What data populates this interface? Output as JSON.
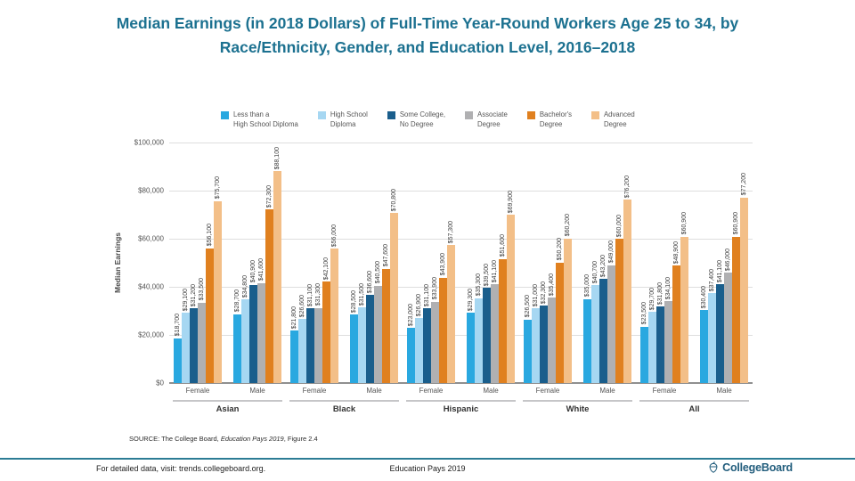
{
  "title": "Median Earnings (in 2018 Dollars) of Full-Time Year-Round Workers Age 25 to 34, by Race/Ethnicity, Gender, and Education Level, 2016–2018",
  "chart_data": {
    "type": "bar",
    "title": "Median Earnings (in 2018 Dollars) of Full-Time Year-Round Workers Age 25 to 34, by Race/Ethnicity, Gender, and Education Level, 2016–2018",
    "ylabel": "Median Earnings",
    "xlabel": "",
    "ylim": [
      0,
      100000
    ],
    "ytick_step": 20000,
    "yticks": [
      "$0",
      "$20,000",
      "$40,000",
      "$60,000",
      "$80,000",
      "$100,000"
    ],
    "grid": true,
    "legend_position": "top",
    "genders": [
      "Female",
      "Male"
    ],
    "series": [
      {
        "name": "Less than a High School Diploma",
        "legend_label": "Less than a\nHigh School Diploma",
        "color": "#29a8e0"
      },
      {
        "name": "High School Diploma",
        "legend_label": "High School\nDiploma",
        "color": "#a6d7f2"
      },
      {
        "name": "Some College, No Degree",
        "legend_label": "Some College,\nNo Degree",
        "color": "#1a5e8c"
      },
      {
        "name": "Associate Degree",
        "legend_label": "Associate\nDegree",
        "color": "#b0b0b2"
      },
      {
        "name": "Bachelor's Degree",
        "legend_label": "Bachelor's\nDegree",
        "color": "#e0801f"
      },
      {
        "name": "Advanced Degree",
        "legend_label": "Advanced\nDegree",
        "color": "#f3bf88"
      }
    ],
    "groups": [
      {
        "label": "Asian",
        "values": {
          "Female": [
            18700,
            29100,
            31200,
            33500,
            56100,
            75700
          ],
          "Male": [
            28700,
            34800,
            40900,
            41600,
            72300,
            88100
          ]
        }
      },
      {
        "label": "Black",
        "values": {
          "Female": [
            21800,
            26600,
            31100,
            31300,
            42100,
            56000
          ],
          "Male": [
            28500,
            31500,
            36600,
            40500,
            47600,
            70800
          ]
        }
      },
      {
        "label": "Hispanic",
        "values": {
          "Female": [
            23000,
            26900,
            31100,
            33900,
            43900,
            57300
          ],
          "Male": [
            29300,
            35300,
            39500,
            41100,
            51600,
            69900
          ]
        }
      },
      {
        "label": "White",
        "values": {
          "Female": [
            26500,
            31000,
            32300,
            35400,
            50200,
            60200
          ],
          "Male": [
            35000,
            40700,
            43200,
            49000,
            60000,
            76200
          ]
        }
      },
      {
        "label": "All",
        "values": {
          "Female": [
            23500,
            29700,
            31800,
            34100,
            48900,
            60900
          ],
          "Male": [
            30400,
            37400,
            41100,
            46000,
            60900,
            77200
          ]
        }
      }
    ]
  },
  "source": {
    "prefix": "SOURCE: The College Board, ",
    "italic": "Education Pays 2019",
    "suffix": ", Figure 2.4"
  },
  "footer": {
    "left": "For detailed data, visit: trends.collegeboard.org.",
    "center": "Education Pays 2019",
    "brand": "CollegeBoard"
  },
  "colors": {
    "title_text": "#1c7190",
    "footer_rule": "#2c7c95",
    "brand": "#235e7d",
    "gridline": "#dedede",
    "baseline": "#8f8f8f"
  }
}
